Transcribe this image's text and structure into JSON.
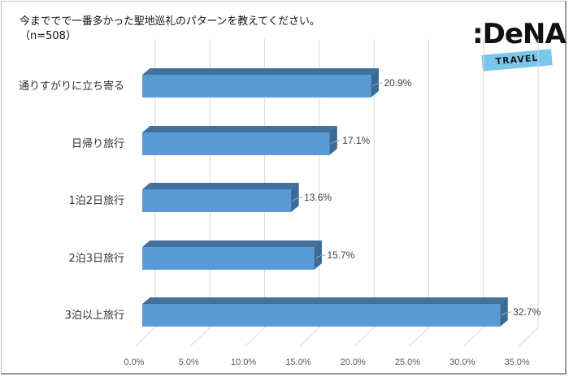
{
  "header": {
    "title": "今まででで一番多かった聖地巡礼のパターンを教えてください。",
    "subtitle": "（n=508）"
  },
  "logo": {
    "brand": ":DeNA",
    "band": "TRAVEL",
    "band_color": "#79c7ea"
  },
  "colors": {
    "bar_front": "#5b9bd5",
    "bar_top": "#41719c",
    "bar_side": "#3a6a96",
    "grid": "#d9d9d9"
  },
  "chart_data": {
    "type": "bar",
    "orientation": "horizontal",
    "style": "3d-clustered",
    "title": "今まででで一番多かった聖地巡礼のパターンを教えてください。",
    "subtitle": "（n=508）",
    "categories": [
      "通りすがりに立ち寄る",
      "日帰り旅行",
      "1泊2日旅行",
      "2泊3日旅行",
      "3泊以上旅行"
    ],
    "values": [
      20.9,
      17.1,
      13.6,
      15.7,
      32.7
    ],
    "value_labels": [
      "20.9%",
      "17.1%",
      "13.6%",
      "15.7%",
      "32.7%"
    ],
    "xlabel": "",
    "ylabel": "",
    "xlim": [
      0,
      35
    ],
    "xticks": [
      0,
      5,
      10,
      15,
      20,
      25,
      30,
      35
    ],
    "xtick_labels": [
      "0.0%",
      "5.0%",
      "10.0%",
      "15.0%",
      "20.0%",
      "25.0%",
      "30.0%",
      "35.0%"
    ],
    "grid": true,
    "legend": null,
    "unit": "%"
  }
}
